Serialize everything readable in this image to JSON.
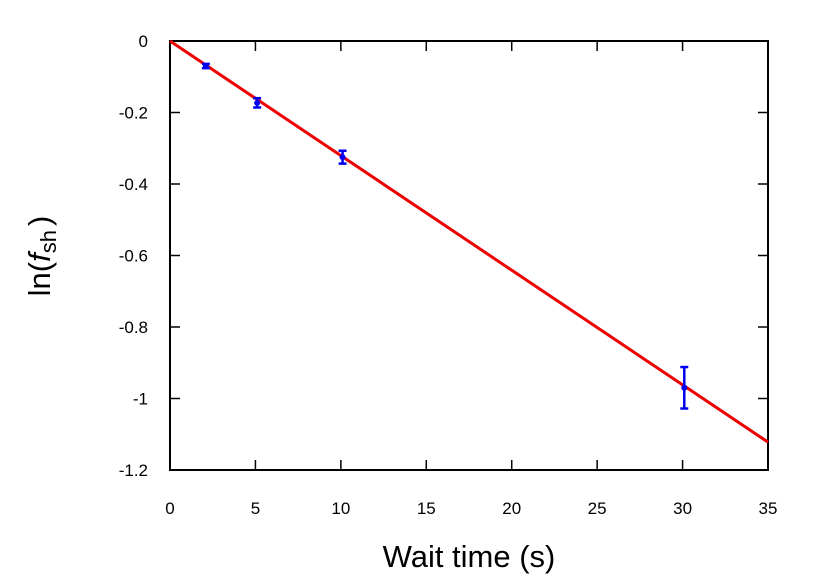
{
  "chart_data": {
    "type": "scatter",
    "xlabel": "Wait time (s)",
    "ylabel_parts": {
      "prefix": "ln(",
      "symbol": "f",
      "subscript": "sh",
      "suffix": ")"
    },
    "xlim": [
      0,
      35
    ],
    "ylim": [
      -1.2,
      0
    ],
    "x_ticks": [
      0,
      5,
      10,
      15,
      20,
      25,
      30,
      35
    ],
    "x_tick_labels": [
      "0",
      "5",
      "10",
      "15",
      "20",
      "25",
      "30",
      "35"
    ],
    "y_ticks": [
      0,
      -0.2,
      -0.4,
      -0.6,
      -0.8,
      -1,
      -1.2
    ],
    "y_tick_labels": [
      "0",
      "-0.2",
      "-0.4",
      "-0.6",
      "-0.8",
      "-1",
      "-1.2"
    ],
    "grid": false,
    "points": [
      {
        "x": 2.1,
        "y": -0.07,
        "err": 0.006
      },
      {
        "x": 5.1,
        "y": -0.173,
        "err": 0.013
      },
      {
        "x": 10.1,
        "y": -0.325,
        "err": 0.018
      },
      {
        "x": 30.1,
        "y": -0.97,
        "err": 0.058
      }
    ],
    "fit_line": {
      "x": [
        0,
        35
      ],
      "y": [
        0,
        -1.122
      ]
    },
    "colors": {
      "points": "#0000ee",
      "fit": "#ee0000",
      "axis": "#000000"
    }
  }
}
